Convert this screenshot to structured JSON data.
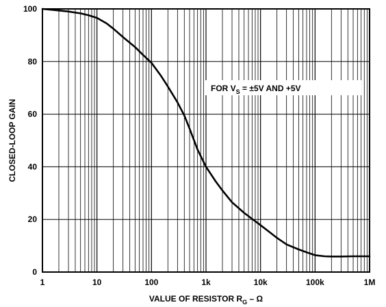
{
  "chart_data": {
    "type": "line",
    "xscale": "log",
    "xlim": [
      1,
      1000000
    ],
    "ylim": [
      0,
      100
    ],
    "grid": true,
    "xlabel": {
      "main": "VALUE OF RESISTOR R",
      "sub": "G",
      "suffix": " – Ω"
    },
    "ylabel": "CLOSED-LOOP GAIN",
    "x_tick_values": [
      1,
      10,
      100,
      1000,
      10000,
      100000,
      1000000
    ],
    "x_tick_labels": [
      "1",
      "10",
      "100",
      "1k",
      "10k",
      "100k",
      "1M"
    ],
    "y_tick_values": [
      0,
      20,
      40,
      60,
      80,
      100
    ],
    "y_tick_labels": [
      "0",
      "20",
      "40",
      "60",
      "80",
      "100"
    ],
    "annotation": {
      "prefix": "FOR V",
      "sub": "S",
      "suffix": " = ±5V AND +5V"
    },
    "series": [
      {
        "x": [
          1,
          2,
          3,
          5,
          7,
          10,
          15,
          20,
          30,
          50,
          70,
          100,
          150,
          200,
          300,
          400,
          500,
          700,
          1000,
          1500,
          2000,
          3000,
          5000,
          7000,
          10000,
          15000,
          20000,
          30000,
          50000,
          70000,
          100000,
          150000,
          200000,
          300000,
          500000,
          1000000
        ],
        "y": [
          100,
          99.4,
          99,
          98.3,
          97.6,
          96.6,
          94.5,
          92.5,
          89.3,
          85.5,
          82.5,
          79.5,
          74.5,
          70.5,
          64.5,
          59.5,
          54.5,
          46.5,
          40,
          34.5,
          31,
          26.5,
          22.5,
          20.2,
          17.8,
          15,
          13,
          10.5,
          8.6,
          7.5,
          6.4,
          6,
          5.9,
          5.9,
          6,
          6
        ]
      }
    ]
  }
}
